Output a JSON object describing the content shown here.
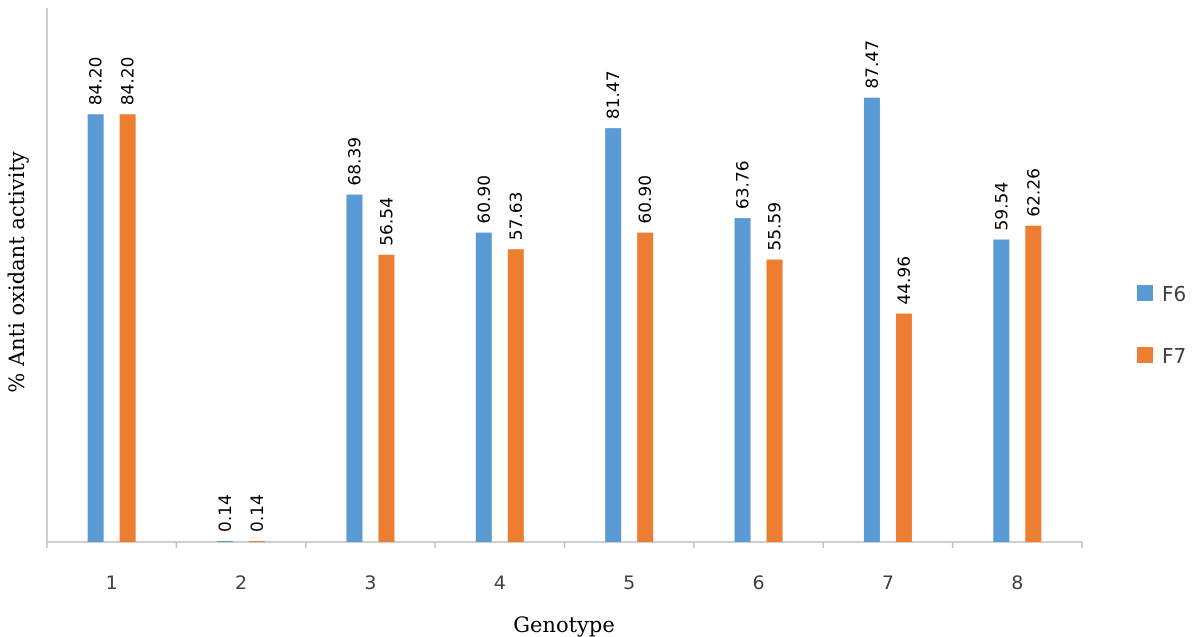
{
  "chart_data": {
    "type": "bar",
    "xlabel": "Genotype",
    "ylabel": "% Anti oxidant activity",
    "categories": [
      "1",
      "2",
      "3",
      "4",
      "5",
      "6",
      "7",
      "8"
    ],
    "series": [
      {
        "name": "F6",
        "color": "#5B9BD5",
        "values": [
          84.2,
          0.14,
          68.39,
          60.9,
          81.47,
          63.76,
          87.47,
          59.54
        ],
        "labels": [
          "84.20",
          "0.14",
          "68.39",
          "60.90",
          "81.47",
          "63.76",
          "87.47",
          "59.54"
        ]
      },
      {
        "name": "F7",
        "color": "#ED7D31",
        "values": [
          84.2,
          0.14,
          56.54,
          57.63,
          60.9,
          55.59,
          44.96,
          62.26
        ],
        "labels": [
          "84.20",
          "0.14",
          "56.54",
          "57.63",
          "60.90",
          "55.59",
          "44.96",
          "62.26"
        ]
      }
    ],
    "ylim": [
      0,
      100
    ],
    "grid": false,
    "legend": "right"
  }
}
